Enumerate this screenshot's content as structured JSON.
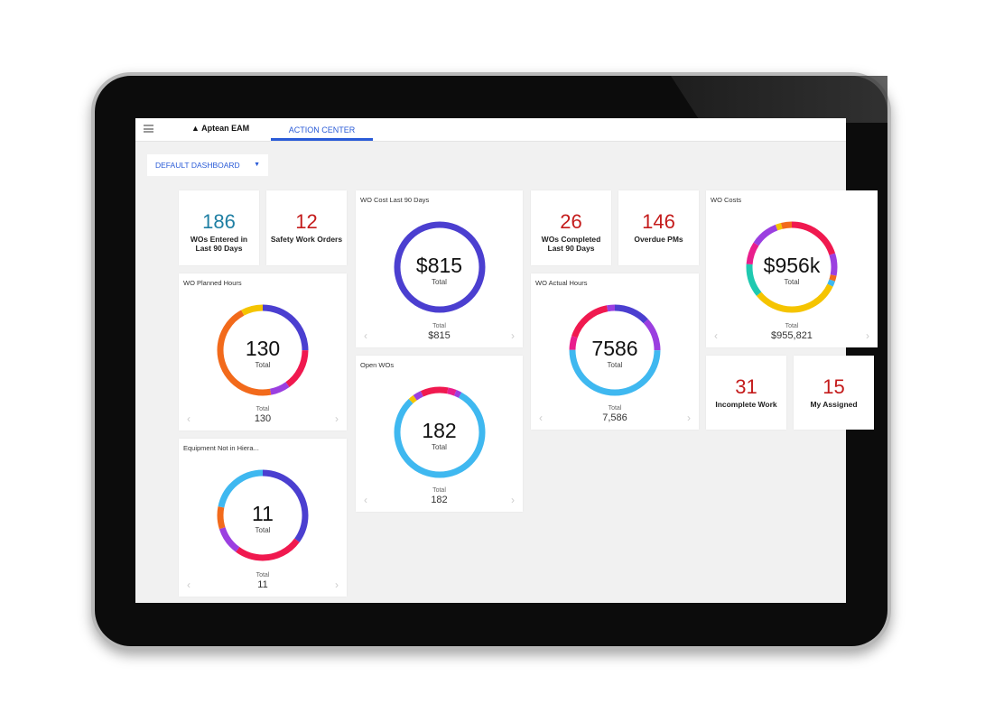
{
  "header": {
    "logo": "Aptean EAM",
    "tab": "ACTION CENTER"
  },
  "dashboard_select": {
    "value": "DEFAULT DASHBOARD",
    "caret": "▼"
  },
  "kpis": [
    {
      "value": "186",
      "label": "WOs Entered in Last 90 Days",
      "color": "#1f7fa3"
    },
    {
      "value": "12",
      "label": "Safety Work Orders",
      "color": "#c41b1b"
    },
    {
      "value": "26",
      "label": "WOs Completed Last 90 Days",
      "color": "#c41b1b"
    },
    {
      "value": "146",
      "label": "Overdue PMs",
      "color": "#c41b1b"
    },
    {
      "value": "31",
      "label": "Incomplete Work",
      "color": "#c41b1b"
    },
    {
      "value": "15",
      "label": "My Assigned",
      "color": "#c41b1b"
    }
  ],
  "donuts": [
    {
      "title": "WO Cost Last 90 Days",
      "center": "$815",
      "center_sub": "Total",
      "foot_label": "Total",
      "foot_value": "$815",
      "segments": [
        {
          "v": 1,
          "c": "#4b3fd0"
        }
      ]
    },
    {
      "title": "WO Planned Hours",
      "center": "130",
      "center_sub": "Total",
      "foot_label": "Total",
      "foot_value": "130",
      "segments": [
        {
          "v": 0.25,
          "c": "#4b3fd0"
        },
        {
          "v": 0.15,
          "c": "#f0194f"
        },
        {
          "v": 0.07,
          "c": "#9b3fe0"
        },
        {
          "v": 0.45,
          "c": "#f26a1b"
        },
        {
          "v": 0.08,
          "c": "#f5c400"
        }
      ]
    },
    {
      "title": "Open WOs",
      "center": "182",
      "center_sub": "Total",
      "foot_label": "Total",
      "foot_value": "182",
      "segments": [
        {
          "v": 0.03,
          "c": "#f0194f"
        },
        {
          "v": 0.03,
          "c": "#e91e8c"
        },
        {
          "v": 0.02,
          "c": "#9b3fe0"
        },
        {
          "v": 0.8,
          "c": "#3fb8f0"
        },
        {
          "v": 0.02,
          "c": "#f5c400"
        },
        {
          "v": 0.03,
          "c": "#9b3fe0"
        },
        {
          "v": 0.07,
          "c": "#f0194f"
        }
      ]
    },
    {
      "title": "WO Actual Hours",
      "center": "7586",
      "center_sub": "Total",
      "foot_label": "Total",
      "foot_value": "7,586",
      "segments": [
        {
          "v": 0.13,
          "c": "#4b3fd0"
        },
        {
          "v": 0.12,
          "c": "#9b3fe0"
        },
        {
          "v": 0.5,
          "c": "#3fb8f0"
        },
        {
          "v": 0.05,
          "c": "#e91e8c"
        },
        {
          "v": 0.17,
          "c": "#f0194f"
        },
        {
          "v": 0.03,
          "c": "#9b3fe0"
        }
      ]
    },
    {
      "title": "WO Costs",
      "center": "$956k",
      "center_sub": "Total",
      "foot_label": "Total",
      "foot_value": "$955,821",
      "segments": [
        {
          "v": 0.2,
          "c": "#f0194f"
        },
        {
          "v": 0.08,
          "c": "#9b3fe0"
        },
        {
          "v": 0.02,
          "c": "#f26a1b"
        },
        {
          "v": 0.02,
          "c": "#3fb8f0"
        },
        {
          "v": 0.32,
          "c": "#f5c400"
        },
        {
          "v": 0.12,
          "c": "#1fc9b0"
        },
        {
          "v": 0.08,
          "c": "#e91e8c"
        },
        {
          "v": 0.1,
          "c": "#9b3fe0"
        },
        {
          "v": 0.02,
          "c": "#f5c400"
        },
        {
          "v": 0.04,
          "c": "#f26a1b"
        },
        {
          "v": 0.03,
          "c": "#3fb8f0"
        }
      ]
    },
    {
      "title": "Equipment Not in Hiera...",
      "center": "11",
      "center_sub": "Total",
      "foot_label": "Total",
      "foot_value": "11",
      "segments": [
        {
          "v": 0.35,
          "c": "#4b3fd0"
        },
        {
          "v": 0.25,
          "c": "#f0194f"
        },
        {
          "v": 0.1,
          "c": "#9b3fe0"
        },
        {
          "v": 0.08,
          "c": "#f26a1b"
        },
        {
          "v": 0.22,
          "c": "#3fb8f0"
        }
      ]
    }
  ],
  "nav": {
    "prev": "‹",
    "next": "›"
  }
}
